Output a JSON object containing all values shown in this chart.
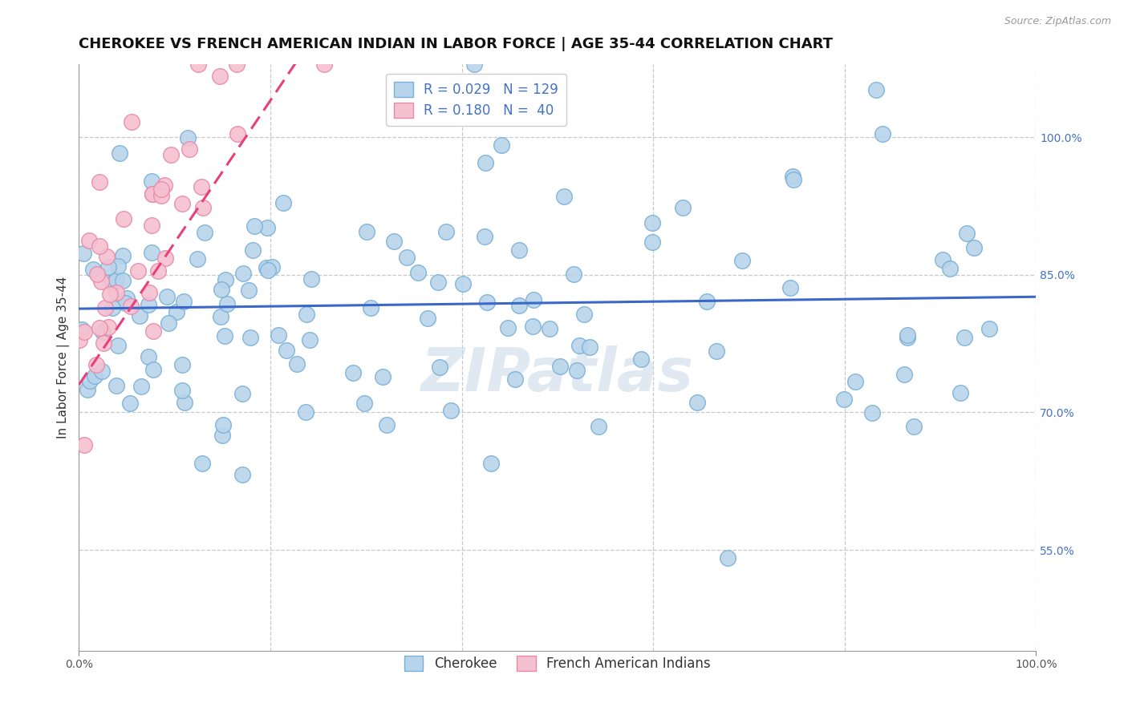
{
  "title": "CHEROKEE VS FRENCH AMERICAN INDIAN IN LABOR FORCE | AGE 35-44 CORRELATION CHART",
  "source": "Source: ZipAtlas.com",
  "ylabel": "In Labor Force | Age 35-44",
  "xlim": [
    0.0,
    1.0
  ],
  "ylim": [
    0.44,
    1.08
  ],
  "ytick_positions": [
    0.55,
    0.7,
    0.85,
    1.0
  ],
  "ytick_labels": [
    "55.0%",
    "70.0%",
    "85.0%",
    "100.0%"
  ],
  "cherokee_color": "#b8d4ea",
  "cherokee_edge_color": "#7ab0d8",
  "french_color": "#f5c0d0",
  "french_edge_color": "#e88aaa",
  "trend_cherokee_color": "#3a68c8",
  "trend_french_color": "#e8407a",
  "cherokee_R": 0.029,
  "cherokee_N": 129,
  "french_R": 0.18,
  "french_N": 40,
  "legend_label_cherokee": "Cherokee",
  "legend_label_french": "French American Indians",
  "watermark": "ZIPatlas",
  "background_color": "#ffffff",
  "grid_color": "#c8c8c8",
  "title_fontsize": 13,
  "axis_label_fontsize": 11,
  "tick_label_fontsize": 10,
  "legend_fontsize": 12,
  "seed": 42
}
